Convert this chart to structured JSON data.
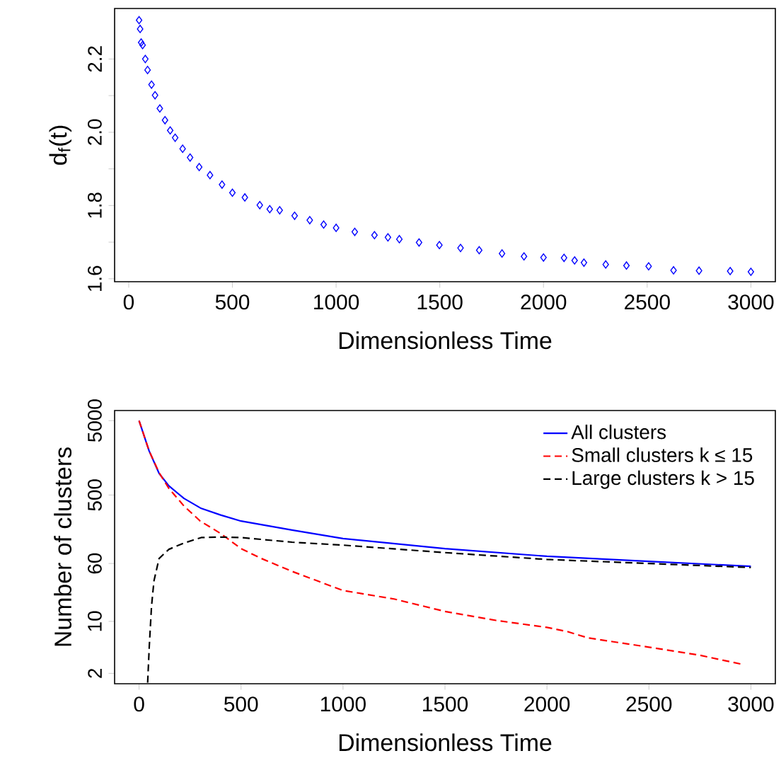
{
  "chart_data": [
    {
      "type": "scatter",
      "xlabel": "Dimensionless Time",
      "ylabel": "d$_{f}$(t)",
      "marker": "diamond",
      "grid": false,
      "xlim": [
        -68,
        3118
      ],
      "ylim": [
        1.592,
        2.338
      ],
      "xticks": [
        0,
        500,
        1000,
        1500,
        2000,
        2500,
        3000
      ],
      "yticks": [
        1.6,
        {
          "value": 1.7,
          "label": null
        },
        1.8,
        {
          "value": 1.9,
          "label": null
        },
        {
          "value": 2.0,
          "label": "2.0"
        },
        {
          "value": 2.1,
          "label": null
        },
        2.2
      ],
      "series": [
        {
          "color": "#0000ff",
          "x": [
            50,
            55,
            60,
            67,
            80,
            91,
            110,
            127,
            150,
            175,
            200,
            224,
            260,
            296,
            340,
            392,
            450,
            500,
            560,
            632,
            680,
            728,
            800,
            873,
            940,
            1000,
            1090,
            1185,
            1250,
            1305,
            1400,
            1498,
            1600,
            1690,
            1800,
            1906,
            2000,
            2099,
            2150,
            2195,
            2300,
            2400,
            2507,
            2627,
            2750,
            2900,
            3000
          ],
          "values": [
            2.306,
            2.282,
            2.245,
            2.238,
            2.2,
            2.17,
            2.13,
            2.101,
            2.065,
            2.033,
            2.005,
            1.985,
            1.955,
            1.931,
            1.905,
            1.883,
            1.857,
            1.835,
            1.822,
            1.801,
            1.79,
            1.787,
            1.772,
            1.76,
            1.748,
            1.739,
            1.728,
            1.719,
            1.713,
            1.708,
            1.699,
            1.692,
            1.684,
            1.678,
            1.669,
            1.661,
            1.658,
            1.657,
            1.65,
            1.644,
            1.639,
            1.636,
            1.634,
            1.623,
            1.622,
            1.621,
            1.619
          ]
        }
      ]
    },
    {
      "type": "line",
      "xlabel": "Dimensionless Time",
      "ylabel": "Number of clusters",
      "log": "y",
      "legend": "top right",
      "grid": false,
      "xlim": [
        -120,
        3120
      ],
      "ylim": [
        1.45,
        6840
      ],
      "xticks": [
        0,
        500,
        1000,
        1500,
        2000,
        2500,
        3000
      ],
      "yticks": [
        2,
        10,
        60,
        500,
        5000
      ],
      "series": [
        {
          "name": "All clusters",
          "color": "#0000ff",
          "line_style": "solid",
          "x": [
            0,
            49,
            98,
            146,
            220,
            305,
            400,
            500,
            750,
            1000,
            1500,
            2000,
            2500,
            3000
          ],
          "values": [
            5000,
            1968,
            977,
            664,
            450,
            330,
            269,
            223,
            169,
            130,
            95,
            75,
            64,
            55
          ]
        },
        {
          "name": "Small clusters k ≤ 15",
          "color": "#ff0000",
          "line_style": "dashed",
          "x": [
            0,
            49,
            98,
            146,
            220,
            300,
            400,
            500,
            600,
            750,
            1000,
            1250,
            1500,
            1750,
            2000,
            2100,
            2200,
            2500,
            2750,
            2950
          ],
          "values": [
            5000,
            1968,
            1000,
            614,
            356,
            223,
            152,
            95,
            70,
            47,
            26,
            20,
            13.6,
            10.3,
            8.3,
            7.3,
            6.0,
            4.5,
            3.5,
            2.67
          ]
        },
        {
          "name": "Large clusters k > 15",
          "color": "#000000",
          "line_style": "dashed",
          "x": [
            42,
            50,
            61,
            73,
            98,
            146,
            220,
            305,
            400,
            500,
            750,
            1000,
            1500,
            2000,
            2500,
            3000
          ],
          "values": [
            1.5,
            4.6,
            16,
            35,
            70,
            93,
            113,
            134,
            136,
            134,
            116,
            106,
            84,
            68,
            60,
            53
          ]
        }
      ]
    }
  ]
}
